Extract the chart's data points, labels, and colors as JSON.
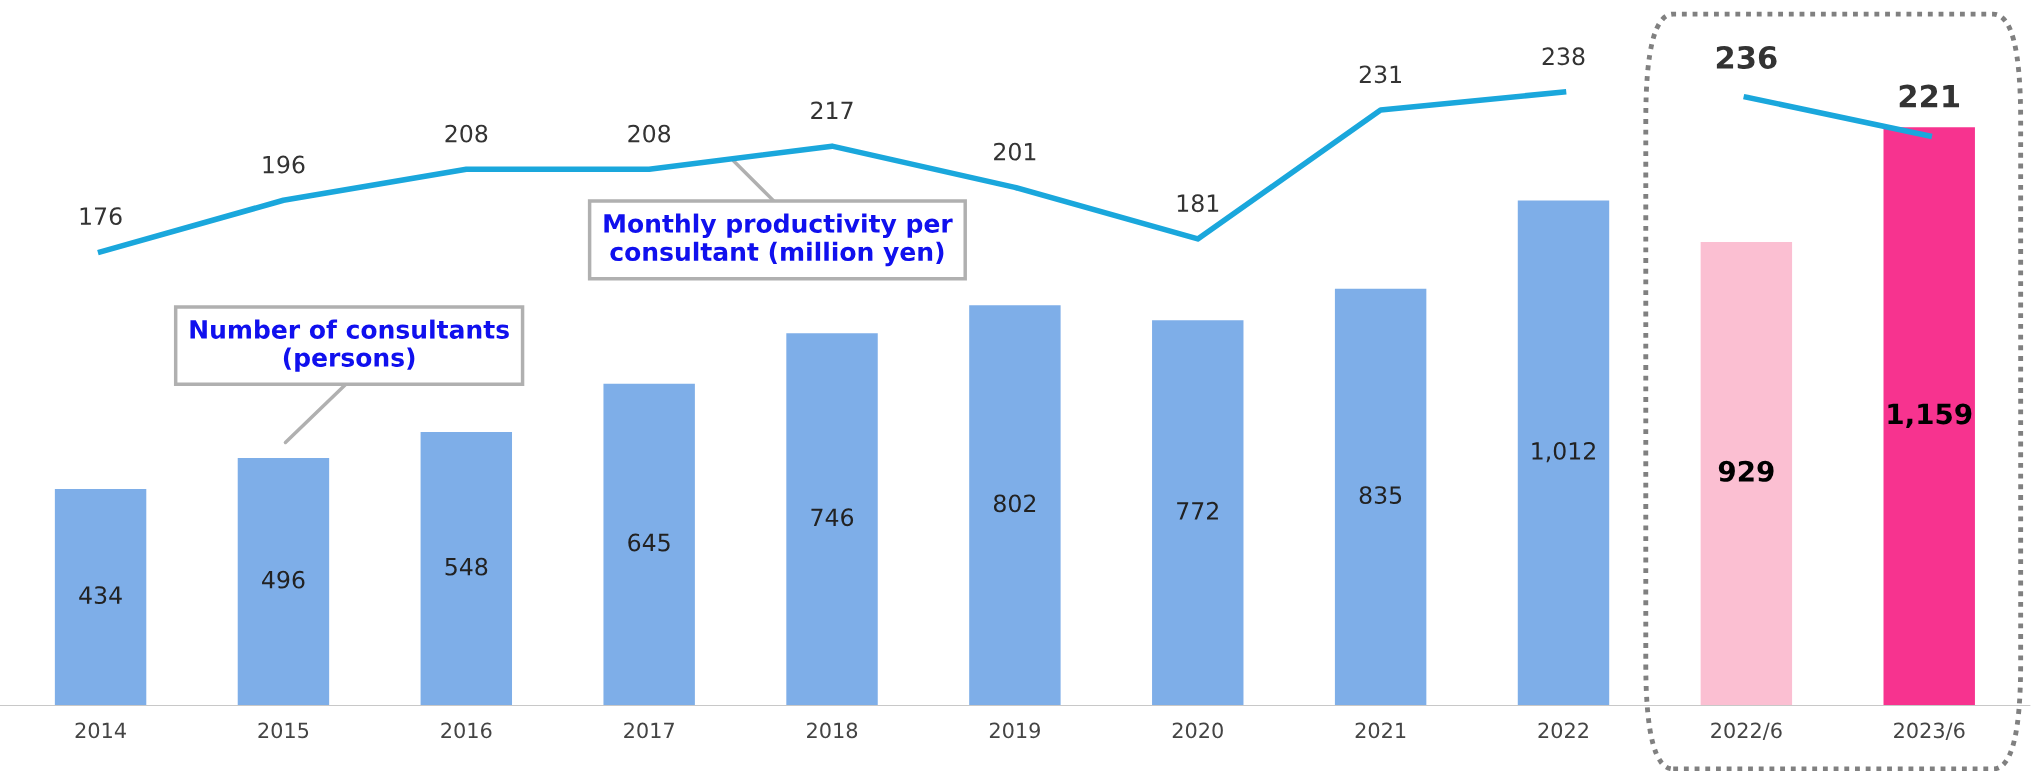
{
  "chart_data": {
    "type": "bar",
    "categories": [
      "2014",
      "2015",
      "2016",
      "2017",
      "2018",
      "2019",
      "2020",
      "2021",
      "2022",
      "2022/6",
      "2023/6"
    ],
    "series": [
      {
        "values": [
          434,
          496,
          548,
          645,
          746,
          802,
          772,
          835,
          1012,
          929,
          1159
        ],
        "colors": [
          "#7eaee8",
          "#7eaee8",
          "#7eaee8",
          "#7eaee8",
          "#7eaee8",
          "#7eaee8",
          "#7eaee8",
          "#7eaee8",
          "#7eaee8",
          "#fbbfd2",
          "#f7338f"
        ],
        "value_labels": [
          "434",
          "496",
          "548",
          "645",
          "746",
          "802",
          "772",
          "835",
          "1,012",
          "929",
          "1,159"
        ]
      },
      {
        "type": "line",
        "axis": "y2",
        "color": "#1aa7dc",
        "values": [
          176,
          196,
          208,
          208,
          217,
          201,
          181,
          231,
          238,
          null,
          null
        ]
      },
      {
        "type": "line",
        "axis": "y2",
        "color": "#1aa7dc",
        "values": [
          null,
          null,
          null,
          null,
          null,
          null,
          null,
          null,
          null,
          236,
          221
        ]
      }
    ],
    "data_labels": true,
    "annotations": [
      "Number of consultants (persons)",
      "Monthly productivity per consultant (million yen)"
    ],
    "marker": "none",
    "line_style": "solid",
    "tick_labels": "x"
  }
}
